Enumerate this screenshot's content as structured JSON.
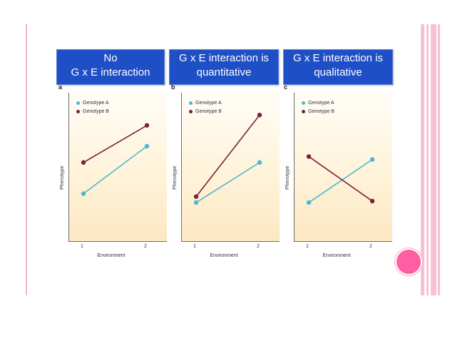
{
  "colors": {
    "genotype_a": "#4ab8d0",
    "genotype_b": "#7a2239",
    "title_bg": "#1f4fc6",
    "accent_pink": "#ff5fa2"
  },
  "panels": [
    {
      "letter": "a",
      "title_line1": "No",
      "title_line2": "G x E interaction"
    },
    {
      "letter": "b",
      "title_line1": "G x E interaction is",
      "title_line2": "quantitative"
    },
    {
      "letter": "c",
      "title_line1": "G x E interaction is",
      "title_line2": "qualitative"
    }
  ],
  "chart_data": [
    {
      "type": "line",
      "categories": [
        "1",
        "2"
      ],
      "xlabel": "Environment",
      "ylabel": "Phenotype",
      "ylim": [
        0,
        10
      ],
      "legend_position": "top-left",
      "series": [
        {
          "name": "Genotype A",
          "values": [
            3.2,
            6.4
          ]
        },
        {
          "name": "Genotype B",
          "values": [
            5.3,
            7.8
          ]
        }
      ]
    },
    {
      "type": "line",
      "categories": [
        "1",
        "2"
      ],
      "xlabel": "Environment",
      "ylabel": "Phenotype",
      "ylim": [
        0,
        10
      ],
      "legend_position": "top-left",
      "series": [
        {
          "name": "Genotype A",
          "values": [
            2.6,
            5.3
          ]
        },
        {
          "name": "Genotype B",
          "values": [
            3.0,
            8.5
          ]
        }
      ]
    },
    {
      "type": "line",
      "categories": [
        "1",
        "2"
      ],
      "xlabel": "Environment",
      "ylabel": "Phenotype",
      "ylim": [
        0,
        10
      ],
      "legend_position": "top-left",
      "series": [
        {
          "name": "Genotype A",
          "values": [
            2.6,
            5.5
          ]
        },
        {
          "name": "Genotype B",
          "values": [
            5.7,
            2.7
          ]
        }
      ]
    }
  ]
}
